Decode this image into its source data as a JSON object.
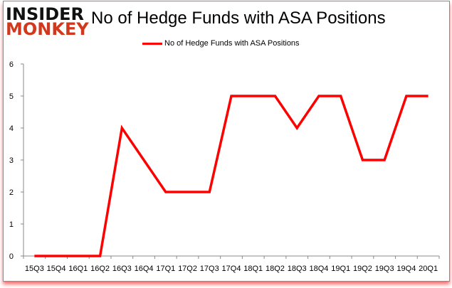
{
  "header": {
    "logo_line1": "INSIDER",
    "logo_line2": "MONKEY",
    "title": "No of Hedge Funds with ASA Positions"
  },
  "legend": {
    "label": "No of Hedge Funds with ASA Positions",
    "color": "#ff0000"
  },
  "chart_data": {
    "type": "line",
    "title": "No of Hedge Funds with ASA Positions",
    "xlabel": "",
    "ylabel": "",
    "categories": [
      "15Q3",
      "15Q4",
      "16Q1",
      "16Q2",
      "16Q3",
      "16Q4",
      "17Q1",
      "17Q2",
      "17Q3",
      "17Q4",
      "18Q1",
      "18Q2",
      "18Q3",
      "18Q4",
      "19Q1",
      "19Q2",
      "19Q3",
      "19Q4",
      "20Q1"
    ],
    "series": [
      {
        "name": "No of Hedge Funds with ASA Positions",
        "color": "#ff0000",
        "values": [
          0,
          0,
          0,
          0,
          4,
          3,
          2,
          2,
          2,
          5,
          5,
          5,
          4,
          5,
          5,
          3,
          3,
          5,
          5
        ]
      }
    ],
    "ylim": [
      0,
      6
    ],
    "yticks": [
      0,
      1,
      2,
      3,
      4,
      5,
      6
    ],
    "grid": false,
    "legend_position": "top"
  }
}
